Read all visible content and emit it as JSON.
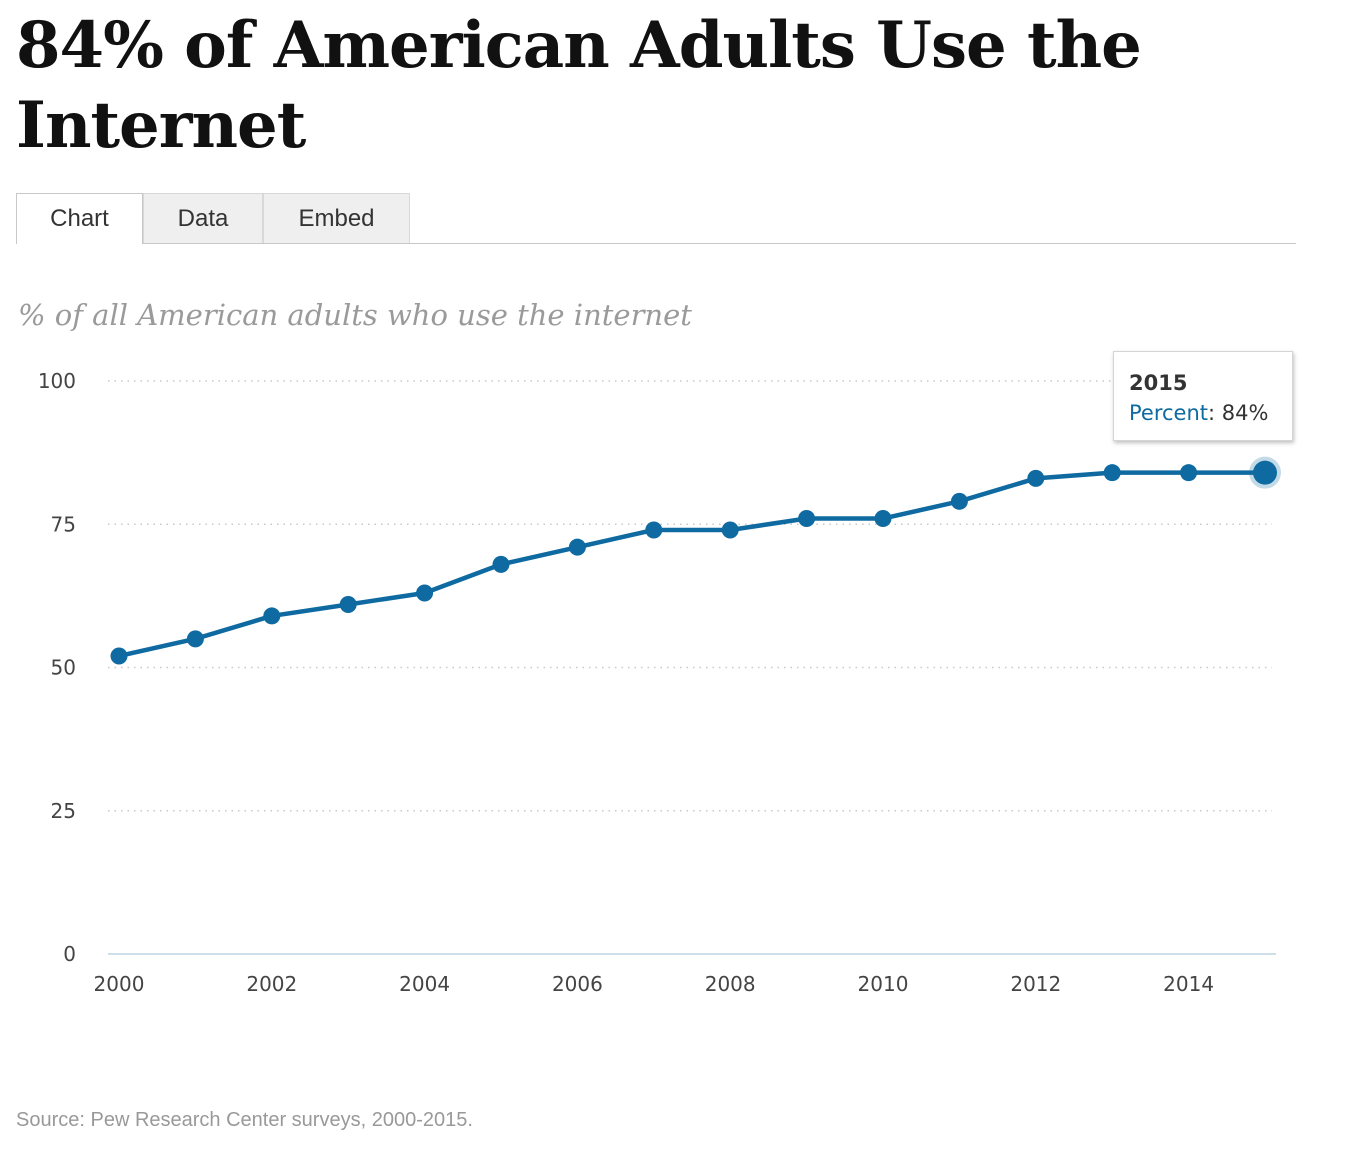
{
  "title": "84% of American Adults Use the Internet",
  "tabs": [
    {
      "label": "Chart",
      "active": true
    },
    {
      "label": "Data",
      "active": false
    },
    {
      "label": "Embed",
      "active": false
    }
  ],
  "subtitle": "% of all American adults who use the internet",
  "tooltip": {
    "year": "2015",
    "key": "Percent",
    "value": "84%"
  },
  "source": "Source: Pew Research Center surveys, 2000-2015.",
  "colors": {
    "line": "#0e6aa0",
    "grid": "#c8c8c8",
    "axis": "#cfdfe9",
    "ticks": "#444444"
  },
  "chart_data": {
    "type": "line",
    "x": [
      2000,
      2001,
      2002,
      2003,
      2004,
      2005,
      2006,
      2007,
      2008,
      2009,
      2010,
      2011,
      2012,
      2013,
      2014,
      2015
    ],
    "series": [
      {
        "name": "Percent",
        "values": [
          52,
          55,
          59,
          61,
          63,
          68,
          71,
          74,
          74,
          76,
          76,
          79,
          83,
          84,
          84,
          84
        ]
      }
    ],
    "xticks": [
      2000,
      2002,
      2004,
      2006,
      2008,
      2010,
      2012,
      2014
    ],
    "yticks": [
      0,
      25,
      50,
      75,
      100
    ],
    "xlim": [
      2000,
      2015
    ],
    "ylim": [
      0,
      100
    ],
    "grid": "horizontal dotted",
    "highlight": 2015
  }
}
